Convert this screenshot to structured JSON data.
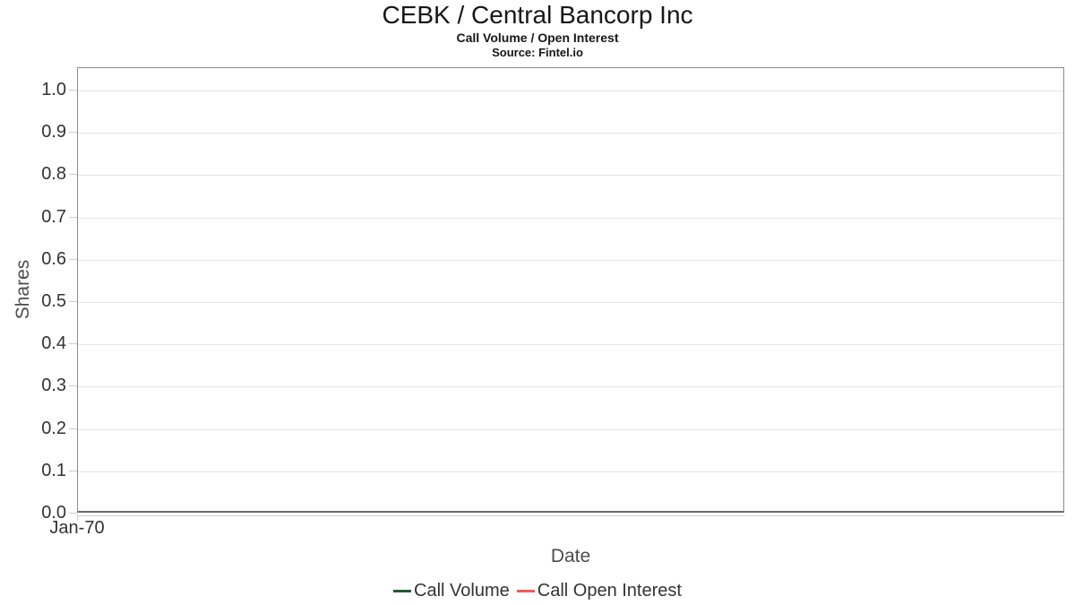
{
  "chart_data": {
    "type": "line",
    "title": "CEBK / Central Bancorp Inc",
    "subtitle": "Call Volume / Open Interest",
    "source": "Source: Fintel.io",
    "xlabel": "Date",
    "ylabel": "Shares",
    "ylim": [
      0.0,
      1.0
    ],
    "ytick_step": 0.1,
    "yticks": [
      "1.0",
      "0.9",
      "0.8",
      "0.7",
      "0.6",
      "0.5",
      "0.4",
      "0.3",
      "0.2",
      "0.1",
      "0.0"
    ],
    "xticks": [
      "Jan-70"
    ],
    "grid": "horizontal",
    "legend_position": "bottom-center",
    "series": [
      {
        "name": "Call Volume",
        "color": "#235a37",
        "x": [],
        "values": []
      },
      {
        "name": "Call Open Interest",
        "color": "#f45b5b",
        "x": [],
        "values": []
      }
    ]
  },
  "colors": {
    "plot_border": "#8a8a8a",
    "axis_line": "#6e6e6e",
    "gridline": "#e6e6e6",
    "tick_mark": "#cccccc",
    "tick_text": "#333333",
    "axis_label_text": "#4d4d4d",
    "title_text": "#171717",
    "background": "#ffffff"
  }
}
